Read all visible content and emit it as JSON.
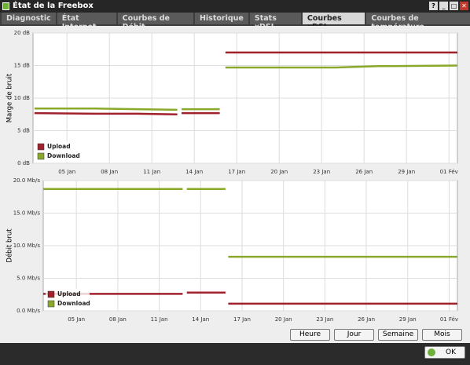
{
  "window": {
    "title": "État de la Freebox",
    "controls": [
      "?",
      "_",
      "□",
      "✕"
    ]
  },
  "tabs": [
    "Diagnostic",
    "État Internet",
    "Courbes de Débit",
    "Historique",
    "Stats xDSL",
    "Courbes xDSL",
    "Courbes de température"
  ],
  "active_tab": 5,
  "range_buttons": [
    "Heure",
    "Jour",
    "Semaine",
    "Mois"
  ],
  "ok_button": "OK",
  "chart_data": [
    {
      "type": "line",
      "ylabel": "Marge de bruit",
      "x": [
        2.7,
        7,
        10,
        12.8,
        12.95,
        13.1,
        15.8,
        16.0,
        16.2,
        24,
        27,
        32.6
      ],
      "xlim": [
        2.6,
        32.6
      ],
      "xticks": [
        {
          "value": 5,
          "label": "05 Jan"
        },
        {
          "value": 8,
          "label": "08 Jan"
        },
        {
          "value": 11,
          "label": "11 Jan"
        },
        {
          "value": 14,
          "label": "14 Jan"
        },
        {
          "value": 17,
          "label": "17 Jan"
        },
        {
          "value": 20,
          "label": "20 Jan"
        },
        {
          "value": 23,
          "label": "23 Jan"
        },
        {
          "value": 26,
          "label": "26 Jan"
        },
        {
          "value": 29,
          "label": "29 Jan"
        },
        {
          "value": 32,
          "label": "01 Fév"
        }
      ],
      "ylim": [
        0,
        20
      ],
      "yticks": [
        {
          "value": 0,
          "label": "0 dB"
        },
        {
          "value": 5,
          "label": "5 dB"
        },
        {
          "value": 10,
          "label": "10 dB"
        },
        {
          "value": 15,
          "label": "15 dB"
        },
        {
          "value": 20,
          "label": "20 dB"
        }
      ],
      "grid": true,
      "legend": "lower left",
      "series": [
        {
          "name": "Upload",
          "color": "#a0202c",
          "values": [
            7.7,
            7.6,
            7.6,
            7.5,
            null,
            7.7,
            7.7,
            null,
            17.0,
            17.0,
            17.0,
            17.0
          ]
        },
        {
          "name": "Download",
          "color": "#8aa82a",
          "values": [
            8.4,
            8.4,
            8.3,
            8.2,
            null,
            8.3,
            8.3,
            null,
            14.7,
            14.7,
            14.9,
            15.0
          ]
        }
      ]
    },
    {
      "type": "line",
      "ylabel": "Débit brut",
      "x": [
        2.6,
        12.7,
        12.85,
        13.0,
        15.8,
        15.9,
        16.0,
        32.6
      ],
      "xlim": [
        2.6,
        32.6
      ],
      "xticks": [
        {
          "value": 5,
          "label": "05 Jan"
        },
        {
          "value": 8,
          "label": "08 Jan"
        },
        {
          "value": 11,
          "label": "11 Jan"
        },
        {
          "value": 14,
          "label": "14 Jan"
        },
        {
          "value": 17,
          "label": "17 Jan"
        },
        {
          "value": 20,
          "label": "20 Jan"
        },
        {
          "value": 23,
          "label": "23 Jan"
        },
        {
          "value": 26,
          "label": "26 Jan"
        },
        {
          "value": 29,
          "label": "29 Jan"
        },
        {
          "value": 32,
          "label": "01 Fév"
        }
      ],
      "ylim": [
        0,
        20
      ],
      "yticks": [
        {
          "value": 0,
          "label": "0.0 Mb/s"
        },
        {
          "value": 5,
          "label": "5.0 Mb/s"
        },
        {
          "value": 10,
          "label": "10.0 Mb/s"
        },
        {
          "value": 15,
          "label": "15.0 Mb/s"
        },
        {
          "value": 20,
          "label": "20.0 Mb/s"
        }
      ],
      "grid": true,
      "legend": "lower left",
      "series": [
        {
          "name": "Upload",
          "color": "#a0202c",
          "values": [
            2.6,
            2.6,
            null,
            2.8,
            2.8,
            null,
            1.1,
            1.1
          ]
        },
        {
          "name": "Download",
          "color": "#8aa82a",
          "values": [
            18.7,
            18.7,
            null,
            18.7,
            18.7,
            null,
            8.3,
            8.3
          ]
        }
      ]
    }
  ]
}
